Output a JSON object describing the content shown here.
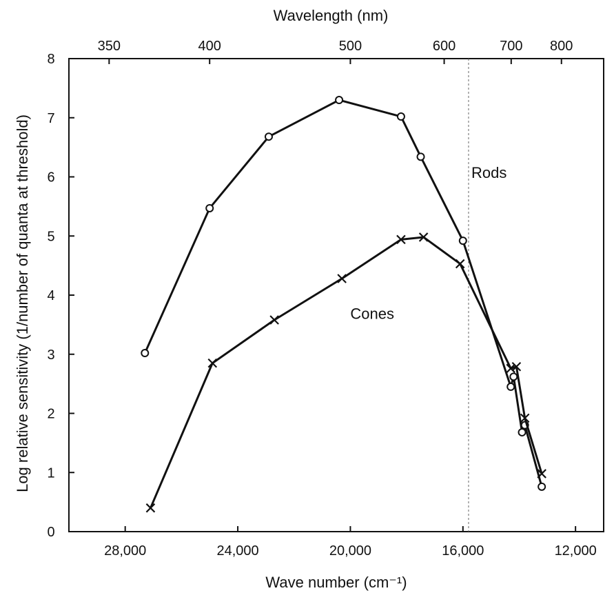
{
  "chart_data": {
    "type": "line",
    "title": "",
    "xlabel": "Wave number (cm⁻¹)",
    "x2label": "Wavelength (nm)",
    "ylabel": "Log relative sensitivity (1/number of quanta at threshold)",
    "xlim": [
      30000,
      11000
    ],
    "ylim": [
      0,
      8
    ],
    "x_reversed": true,
    "grid": false,
    "x_ticks": [
      28000,
      24000,
      20000,
      16000,
      12000
    ],
    "x_tick_labels": [
      "28,000",
      "24,000",
      "20,000",
      "16,000",
      "12,000"
    ],
    "y_ticks": [
      0,
      1,
      2,
      3,
      4,
      5,
      6,
      7,
      8
    ],
    "y_tick_labels": [
      "0",
      "1",
      "2",
      "3",
      "4",
      "5",
      "6",
      "7",
      "8"
    ],
    "x2_ticks_nm": [
      350,
      400,
      500,
      600,
      700,
      800
    ],
    "x2_tick_labels": [
      "350",
      "400",
      "500",
      "600",
      "700",
      "800"
    ],
    "reference_line": {
      "wavenumber": 15800,
      "style": "dashed"
    },
    "series": [
      {
        "name": "Rods",
        "marker": "circle",
        "color": "#111111",
        "points": [
          {
            "x": 27300,
            "y": 3.02
          },
          {
            "x": 25000,
            "y": 5.47
          },
          {
            "x": 22900,
            "y": 6.68
          },
          {
            "x": 20400,
            "y": 7.3
          },
          {
            "x": 18200,
            "y": 7.02
          },
          {
            "x": 17500,
            "y": 6.34
          },
          {
            "x": 16000,
            "y": 4.92
          },
          {
            "x": 14300,
            "y": 2.45
          },
          {
            "x": 14200,
            "y": 2.62
          },
          {
            "x": 13900,
            "y": 1.68
          },
          {
            "x": 13800,
            "y": 1.8
          },
          {
            "x": 13200,
            "y": 0.76
          }
        ]
      },
      {
        "name": "Cones",
        "marker": "x",
        "color": "#111111",
        "points": [
          {
            "x": 27100,
            "y": 0.4
          },
          {
            "x": 24900,
            "y": 2.85
          },
          {
            "x": 22700,
            "y": 3.58
          },
          {
            "x": 20300,
            "y": 4.28
          },
          {
            "x": 18200,
            "y": 4.94
          },
          {
            "x": 17400,
            "y": 4.98
          },
          {
            "x": 16100,
            "y": 4.53
          },
          {
            "x": 14300,
            "y": 2.76
          },
          {
            "x": 14100,
            "y": 2.79
          },
          {
            "x": 13800,
            "y": 1.92
          },
          {
            "x": 13200,
            "y": 0.98
          }
        ]
      }
    ],
    "annotations": [
      {
        "text": "Rods",
        "x": 15700,
        "y": 5.98
      },
      {
        "text": "Cones",
        "x": 20000,
        "y": 3.6
      }
    ]
  }
}
